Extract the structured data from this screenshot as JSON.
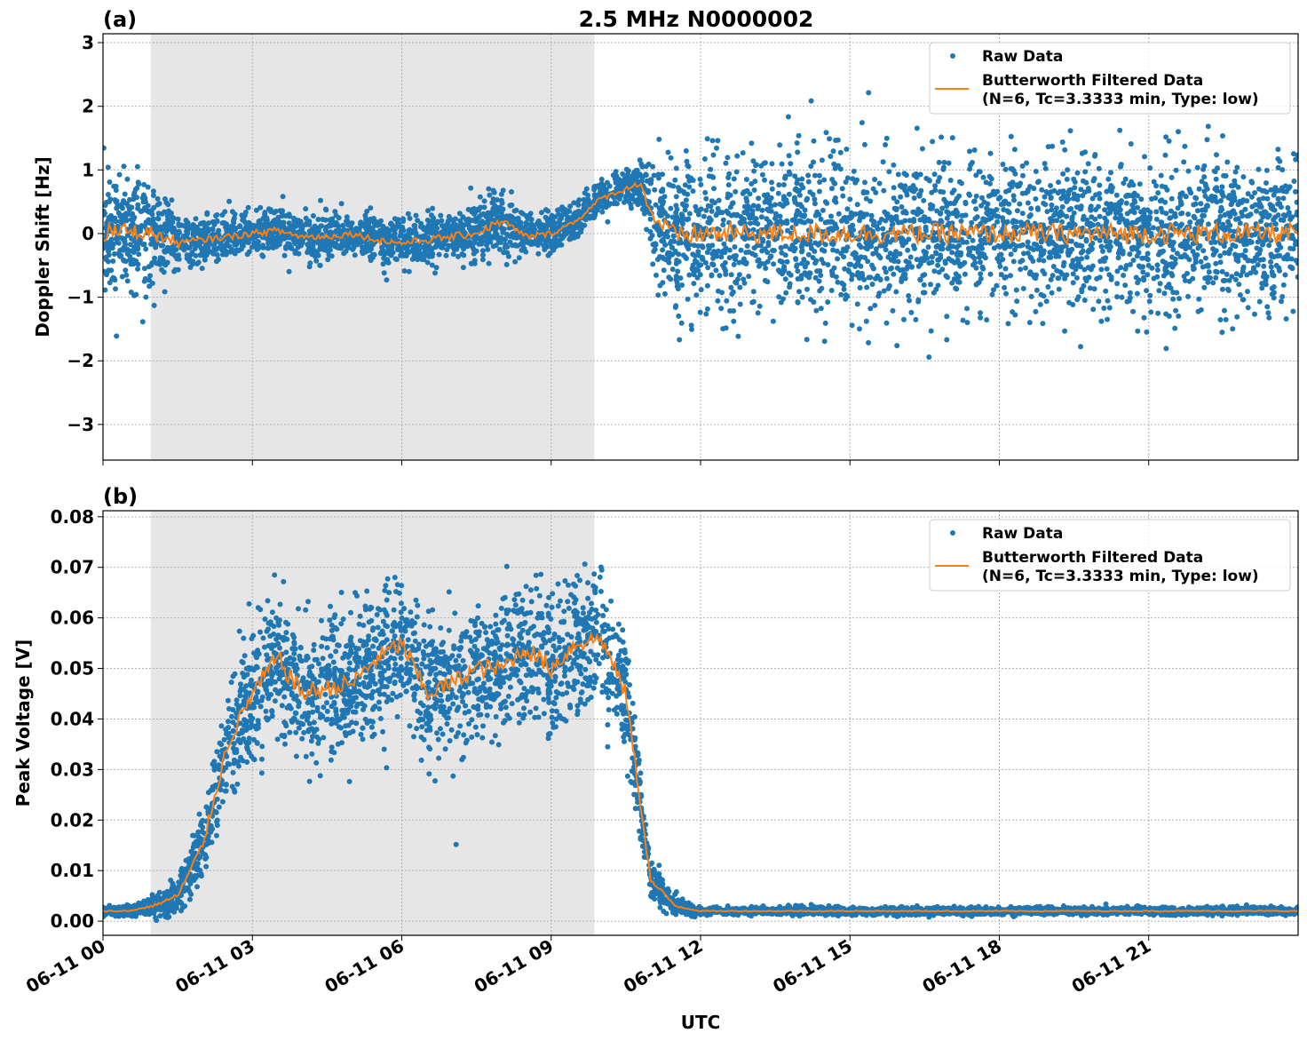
{
  "chart_data": [
    {
      "type": "scatter+line",
      "panel_label": "(a)",
      "title": "2.5 MHz N0000002",
      "xlabel": "",
      "ylabel": "Doppler Shift [Hz]",
      "xlim_hours": [
        0,
        24
      ],
      "ylim": [
        -3.56,
        3.14
      ],
      "grid": true,
      "legend_placement": "top-right",
      "yticks": [
        {
          "v": 3,
          "label": "3"
        },
        {
          "v": 2,
          "label": "2"
        },
        {
          "v": 1,
          "label": "1"
        },
        {
          "v": 0,
          "label": "0"
        },
        {
          "v": -1,
          "label": "−1"
        },
        {
          "v": -2,
          "label": "−2"
        },
        {
          "v": -3,
          "label": "−3"
        }
      ],
      "shaded_interval_hours": [
        0.96,
        9.87
      ],
      "series": [
        {
          "name": "Raw Data",
          "kind": "scatter",
          "color": "#1f77b4",
          "x_hours": [
            0,
            0.5,
            1,
            1.5,
            2,
            2.5,
            3,
            3.5,
            4,
            4.5,
            5,
            5.5,
            6,
            6.5,
            7,
            7.5,
            8,
            8.5,
            9,
            9.5,
            10,
            10.5,
            10.8,
            11,
            11.5,
            12,
            14,
            16,
            18,
            20,
            22,
            24
          ],
          "center": [
            0,
            0.05,
            0,
            -0.15,
            -0.1,
            -0.05,
            0,
            0.05,
            -0.05,
            -0.05,
            0,
            -0.1,
            -0.15,
            -0.1,
            -0.05,
            0,
            0.2,
            -0.05,
            0,
            0.2,
            0.55,
            0.7,
            0.8,
            0.3,
            -0.05,
            0,
            0,
            0,
            0,
            0,
            0,
            0
          ],
          "spread": [
            1.1,
            1.0,
            0.9,
            0.55,
            0.4,
            0.4,
            0.4,
            0.45,
            0.4,
            0.4,
            0.4,
            0.4,
            0.4,
            0.45,
            0.45,
            0.5,
            0.55,
            0.4,
            0.35,
            0.3,
            0.3,
            0.3,
            0.35,
            1.0,
            1.3,
            1.3,
            1.3,
            1.3,
            1.3,
            1.3,
            1.3,
            1.3
          ]
        },
        {
          "name": "Butterworth Filtered Data\n(N=6, Tc=3.3333 min, Type: low)",
          "kind": "line",
          "color": "#ff7f0e",
          "x_hours": [
            0,
            0.5,
            1,
            1.5,
            2,
            2.5,
            3,
            3.5,
            4,
            4.5,
            5,
            5.5,
            6,
            6.5,
            7,
            7.5,
            8,
            8.5,
            9,
            9.5,
            10,
            10.5,
            10.8,
            11,
            11.5,
            12,
            14,
            16,
            18,
            20,
            22,
            24
          ],
          "y": [
            0,
            0.05,
            0,
            -0.15,
            -0.1,
            -0.05,
            0,
            0.05,
            -0.05,
            -0.05,
            0,
            -0.1,
            -0.15,
            -0.1,
            -0.05,
            0,
            0.2,
            -0.05,
            0,
            0.2,
            0.55,
            0.7,
            0.8,
            0.3,
            -0.05,
            0,
            0,
            0,
            0,
            0,
            0,
            0
          ]
        }
      ]
    },
    {
      "type": "scatter+line",
      "panel_label": "(b)",
      "xlabel": "UTC",
      "ylabel": "Peak Voltage [V]",
      "xlim_hours": [
        0,
        24
      ],
      "ylim": [
        -0.0028,
        0.0812
      ],
      "grid": true,
      "legend_placement": "top-right",
      "xticks": [
        "06-11 00",
        "06-11 03",
        "06-11 06",
        "06-11 09",
        "06-11 12",
        "06-11 15",
        "06-11 18",
        "06-11 21"
      ],
      "xtick_hours": [
        0,
        3,
        6,
        9,
        12,
        15,
        18,
        21
      ],
      "yticks": [
        {
          "v": 0.08,
          "label": "0.08"
        },
        {
          "v": 0.07,
          "label": "0.07"
        },
        {
          "v": 0.06,
          "label": "0.06"
        },
        {
          "v": 0.05,
          "label": "0.05"
        },
        {
          "v": 0.04,
          "label": "0.04"
        },
        {
          "v": 0.03,
          "label": "0.03"
        },
        {
          "v": 0.02,
          "label": "0.02"
        },
        {
          "v": 0.01,
          "label": "0.01"
        },
        {
          "v": 0.0,
          "label": "0.00"
        }
      ],
      "shaded_interval_hours": [
        0.96,
        9.87
      ],
      "series": [
        {
          "name": "Raw Data",
          "kind": "scatter",
          "color": "#1f77b4",
          "x_hours": [
            0,
            0.5,
            1,
            1.5,
            2,
            2.5,
            3,
            3.5,
            4,
            4.5,
            5,
            5.5,
            6,
            6.5,
            7,
            7.5,
            8,
            8.5,
            9,
            9.5,
            10,
            10.5,
            11,
            11.5,
            12,
            14,
            16,
            18,
            20,
            22,
            24
          ],
          "center": [
            0.002,
            0.002,
            0.003,
            0.005,
            0.015,
            0.035,
            0.045,
            0.052,
            0.045,
            0.046,
            0.047,
            0.052,
            0.055,
            0.045,
            0.047,
            0.05,
            0.05,
            0.054,
            0.05,
            0.055,
            0.056,
            0.045,
            0.008,
            0.003,
            0.002,
            0.002,
            0.002,
            0.002,
            0.002,
            0.002,
            0.002
          ],
          "spread": [
            0.001,
            0.001,
            0.002,
            0.004,
            0.008,
            0.012,
            0.015,
            0.016,
            0.015,
            0.015,
            0.015,
            0.015,
            0.015,
            0.015,
            0.015,
            0.015,
            0.015,
            0.015,
            0.015,
            0.015,
            0.014,
            0.013,
            0.005,
            0.002,
            0.0008,
            0.0008,
            0.0008,
            0.0008,
            0.0008,
            0.0008,
            0.0008
          ]
        },
        {
          "name": "Butterworth Filtered Data\n(N=6, Tc=3.3333 min, Type: low)",
          "kind": "line",
          "color": "#ff7f0e",
          "x_hours": [
            0,
            0.5,
            1,
            1.5,
            2,
            2.5,
            3,
            3.5,
            4,
            4.5,
            5,
            5.5,
            6,
            6.5,
            7,
            7.5,
            8,
            8.5,
            9,
            9.5,
            10,
            10.5,
            11,
            11.5,
            12,
            14,
            16,
            18,
            20,
            22,
            24
          ],
          "y": [
            0.002,
            0.002,
            0.003,
            0.005,
            0.015,
            0.035,
            0.045,
            0.052,
            0.045,
            0.046,
            0.047,
            0.052,
            0.055,
            0.045,
            0.047,
            0.05,
            0.05,
            0.054,
            0.05,
            0.055,
            0.056,
            0.045,
            0.008,
            0.003,
            0.002,
            0.002,
            0.002,
            0.002,
            0.002,
            0.002,
            0.002
          ]
        }
      ]
    }
  ],
  "legend": {
    "raw": "Raw Data",
    "filtered_line1": "Butterworth Filtered Data",
    "filtered_line2": "(N=6, Tc=3.3333 min, Type: low)"
  }
}
